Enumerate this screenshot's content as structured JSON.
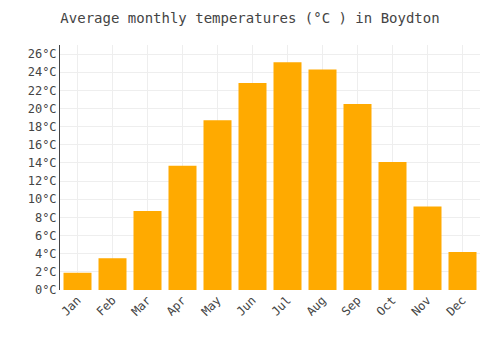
{
  "chart_data": {
    "type": "bar",
    "title": "Average monthly temperatures (°C ) in Boydton",
    "categories": [
      "Jan",
      "Feb",
      "Mar",
      "Apr",
      "May",
      "Jun",
      "Jul",
      "Aug",
      "Sep",
      "Oct",
      "Nov",
      "Dec"
    ],
    "values": [
      1.9,
      3.5,
      8.7,
      13.7,
      18.7,
      22.8,
      25.1,
      24.3,
      20.5,
      14.1,
      9.2,
      4.2
    ],
    "color": "#FFAA00",
    "ylim": [
      0,
      27
    ],
    "yticks": [
      {
        "value": 0,
        "label": "0°C"
      },
      {
        "value": 2,
        "label": "2°C"
      },
      {
        "value": 4,
        "label": "4°C"
      },
      {
        "value": 6,
        "label": "6°C"
      },
      {
        "value": 8,
        "label": "8°C"
      },
      {
        "value": 10,
        "label": "10°C"
      },
      {
        "value": 12,
        "label": "12°C"
      },
      {
        "value": 14,
        "label": "14°C"
      },
      {
        "value": 16,
        "label": "16°C"
      },
      {
        "value": 18,
        "label": "18°C"
      },
      {
        "value": 20,
        "label": "20°C"
      },
      {
        "value": 22,
        "label": "22°C"
      },
      {
        "value": 24,
        "label": "24°C"
      },
      {
        "value": 26,
        "label": "26°C"
      }
    ],
    "grid": true
  }
}
